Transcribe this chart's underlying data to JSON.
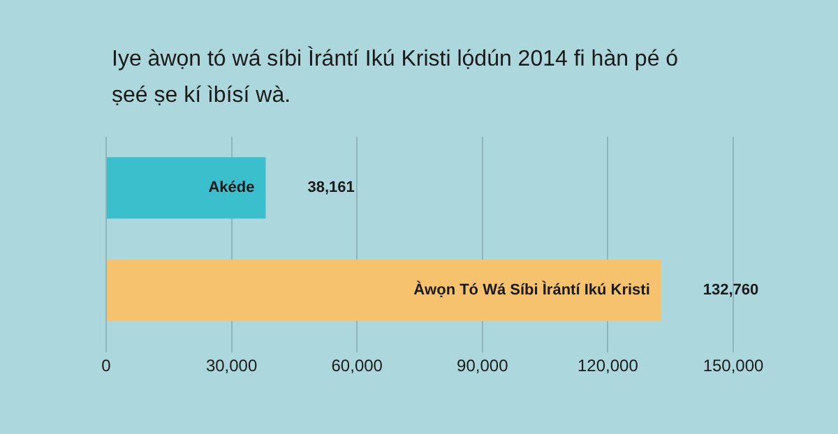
{
  "chart_data": {
    "type": "bar",
    "orientation": "horizontal",
    "title": "Iye àwọn tó wá síbi Ìrántí Ikú Kristi lọ́dún 2014 fi hàn pé ó ṣeé ṣe kí ìbísí wà.",
    "categories": [
      "Akéde",
      "Àwọn Tó Wá Síbi Ìrántí Ikú Kristi"
    ],
    "values": [
      38161,
      132760
    ],
    "colors": [
      "#3cbfcd",
      "#f6c26e"
    ],
    "value_labels": [
      "38,161",
      "132,760"
    ],
    "xlim": [
      0,
      150000
    ],
    "xticks": [
      0,
      {
        "value": 30000,
        "label": "30,000"
      },
      {
        "value": 60000,
        "label": "60,000"
      },
      {
        "value": 90000,
        "label": "90,000"
      },
      {
        "value": 120000,
        "label": "120,000"
      },
      {
        "value": 150000,
        "label": "150,000"
      }
    ],
    "grid": "x",
    "legend": false
  }
}
